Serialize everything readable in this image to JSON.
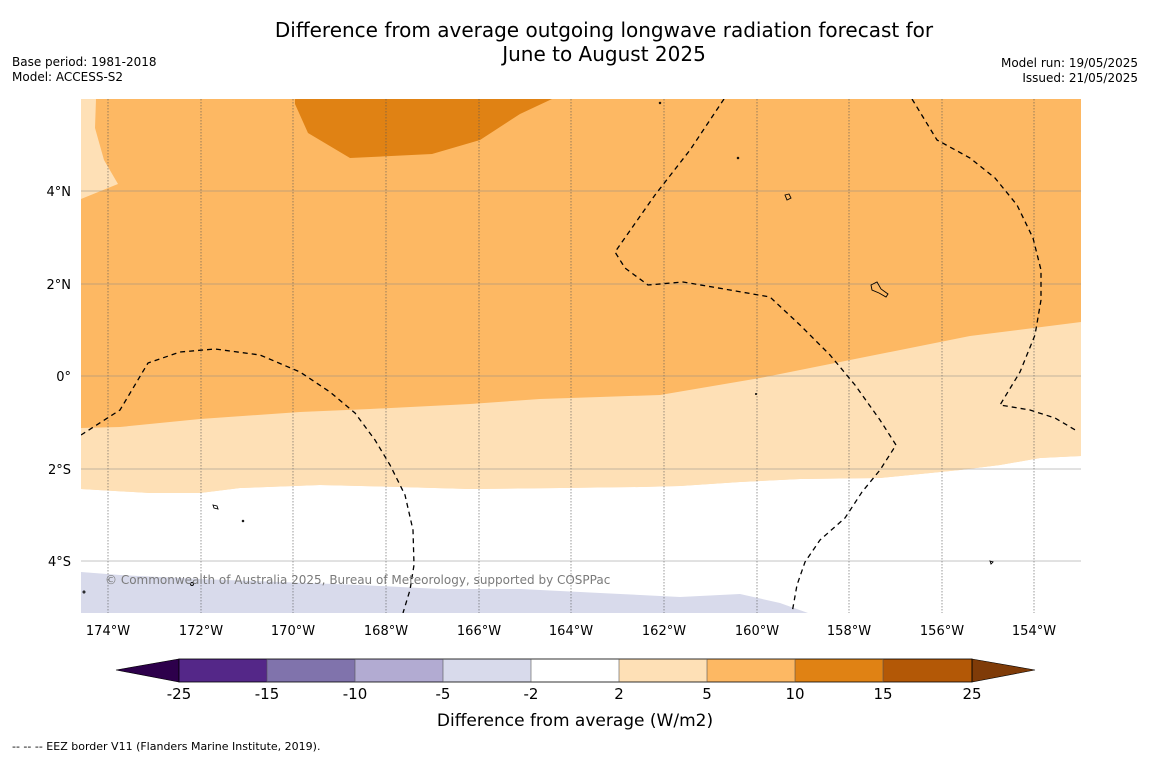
{
  "header": {
    "title_line1": "Difference from average outgoing longwave radiation forecast for",
    "title_line2": "June to August 2025",
    "base_period": "Base period: 1981-2018",
    "model": "Model: ACCESS-S2",
    "model_run": "Model run: 19/05/2025",
    "issued": "Issued: 21/05/2025"
  },
  "map": {
    "copyright": "© Commonwealth of Australia 2025, Bureau of Meteorology, supported by COSPPac",
    "lon_labels": [
      "174°W",
      "172°W",
      "170°W",
      "168°W",
      "166°W",
      "164°W",
      "162°W",
      "160°W",
      "158°W",
      "156°W",
      "154°W"
    ],
    "lat_labels": [
      "4°N",
      "2°N",
      "0°",
      "2°S",
      "4°S"
    ],
    "colors": {
      "band_15_25": "#b35806",
      "band_10_15": "#e08214",
      "band_5_10": "#fdb863",
      "band_2_5": "#fee0b6",
      "band_neutral": "#ffffff",
      "band_m5_m2": "#d8daeb"
    }
  },
  "colorbar": {
    "title": "Difference from average (W/m2)",
    "ticks": [
      "-25",
      "-15",
      "-10",
      "-5",
      "-2",
      "2",
      "5",
      "10",
      "15",
      "25"
    ],
    "colors": [
      "#2d004b",
      "#542788",
      "#8073ac",
      "#b2abd2",
      "#d8daeb",
      "#ffffff",
      "#fee0b6",
      "#fdb863",
      "#e08214",
      "#b35806",
      "#7f3b08"
    ]
  },
  "footnote": "--  --  -- EEZ border V11 (Flanders Marine Institute, 2019)."
}
